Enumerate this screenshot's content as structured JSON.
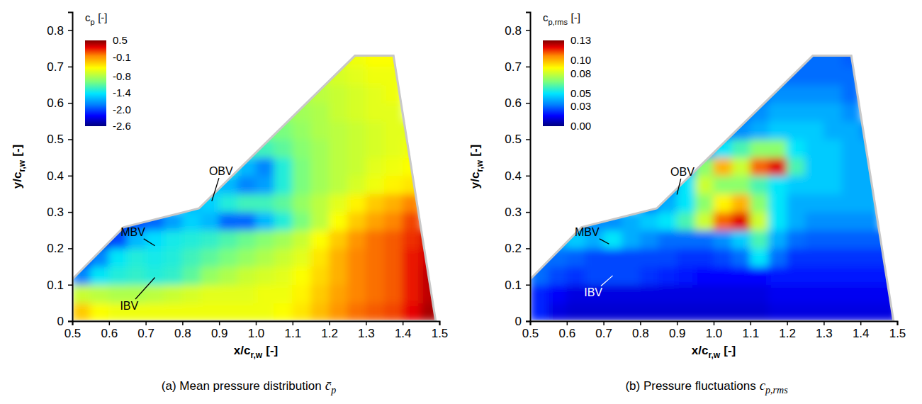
{
  "chart_data": [
    {
      "type": "heatmap",
      "title": {
        "text": "(a) Mean pressure distribution",
        "symbol": "c̄",
        "subscript": "p"
      },
      "xlabel": {
        "base": "x/c",
        "subscript": "r,w",
        "unit": "[-]"
      },
      "ylabel": {
        "base": "y/c",
        "subscript": "r,w",
        "unit": "[-]"
      },
      "xlim": [
        0.5,
        1.5
      ],
      "ylim": [
        0,
        0.85
      ],
      "xticks": [
        0.5,
        0.6,
        0.7,
        0.8,
        0.9,
        {
          "value": 1,
          "label": "1.0"
        },
        1.1,
        1.2,
        1.3,
        1.4,
        1.5
      ],
      "yticks": [
        0,
        0.1,
        0.2,
        0.3,
        0.4,
        0.5,
        0.6,
        0.7,
        0.8
      ],
      "x_edges": [
        0.5,
        0.55,
        0.6,
        0.65,
        0.7,
        0.75,
        0.8,
        0.85,
        0.9,
        0.95,
        1.0,
        1.05,
        1.1,
        1.15,
        1.2,
        1.25,
        1.3,
        1.35,
        1.4,
        1.45,
        1.5
      ],
      "y_edges": [
        0,
        0.05,
        0.1,
        0.15,
        0.2,
        0.25,
        0.3,
        0.35,
        0.4,
        0.45,
        0.5,
        0.55,
        0.6,
        0.65,
        0.7,
        0.75
      ],
      "values": [
        [
          -0.3,
          -0.5,
          -0.55,
          -0.55,
          -0.55,
          -0.55,
          -0.55,
          -0.55,
          -0.55,
          -0.55,
          -0.55,
          -0.5,
          -0.4,
          -0.25,
          -0.1,
          0.0,
          0.05,
          0.1,
          0.25,
          0.4
        ],
        [
          -0.7,
          -0.75,
          -0.8,
          -0.8,
          -0.75,
          -0.7,
          -0.65,
          -0.6,
          -0.6,
          -0.6,
          -0.55,
          -0.55,
          -0.45,
          -0.3,
          -0.15,
          -0.05,
          0.0,
          0.05,
          0.2,
          0.35
        ],
        [
          -1.8,
          -1.4,
          -1.3,
          -1.25,
          -1.3,
          -1.25,
          -1.1,
          -0.9,
          -0.8,
          -0.7,
          -0.65,
          -0.6,
          -0.5,
          -0.35,
          -0.2,
          -0.05,
          0.0,
          0.05,
          0.2,
          0.35
        ],
        [
          -2.2,
          -1.8,
          -1.4,
          -1.3,
          -1.35,
          -1.3,
          -1.2,
          -1.1,
          -1.0,
          -0.9,
          -0.8,
          -0.7,
          -0.6,
          -0.4,
          -0.2,
          -0.05,
          0.0,
          0.05,
          0.2,
          0.3
        ],
        [
          null,
          -2.3,
          -2.0,
          -1.6,
          -1.45,
          -1.35,
          -1.3,
          -1.25,
          -1.15,
          -1.05,
          -0.95,
          -0.85,
          -0.7,
          -0.5,
          -0.3,
          -0.1,
          0.0,
          0.05,
          0.15,
          0.3
        ],
        [
          null,
          null,
          -2.2,
          -2.0,
          -1.9,
          -1.7,
          -1.5,
          -1.6,
          -1.9,
          -1.9,
          -1.6,
          -1.3,
          -1.0,
          -0.75,
          -0.5,
          -0.3,
          -0.15,
          -0.05,
          0.1,
          null
        ],
        [
          null,
          null,
          null,
          null,
          null,
          null,
          -1.6,
          -1.5,
          -1.3,
          -1.2,
          -1.2,
          -1.1,
          -0.9,
          -0.75,
          -0.6,
          -0.45,
          -0.3,
          -0.2,
          -0.05,
          null
        ],
        [
          null,
          null,
          null,
          null,
          null,
          null,
          null,
          -1.5,
          -1.6,
          -1.8,
          -1.7,
          -1.3,
          -1.0,
          -0.85,
          -0.75,
          -0.65,
          -0.55,
          -0.45,
          -0.4,
          null
        ],
        [
          null,
          null,
          null,
          null,
          null,
          null,
          null,
          null,
          -1.3,
          -1.6,
          -1.8,
          -1.3,
          -1.0,
          -0.85,
          -0.75,
          -0.7,
          -0.6,
          -0.55,
          -0.5,
          null
        ],
        [
          null,
          null,
          null,
          null,
          null,
          null,
          null,
          null,
          null,
          -1.2,
          -1.2,
          -1.1,
          -0.95,
          -0.85,
          -0.75,
          -0.7,
          -0.65,
          -0.6,
          -0.55,
          null
        ],
        [
          null,
          null,
          null,
          null,
          null,
          null,
          null,
          null,
          null,
          null,
          -1.0,
          -1.0,
          -0.9,
          -0.8,
          -0.75,
          -0.7,
          -0.65,
          -0.6,
          -0.6,
          null
        ],
        [
          null,
          null,
          null,
          null,
          null,
          null,
          null,
          null,
          null,
          null,
          null,
          -0.9,
          -0.85,
          -0.8,
          -0.7,
          -0.65,
          -0.6,
          -0.6,
          null,
          null
        ],
        [
          null,
          null,
          null,
          null,
          null,
          null,
          null,
          null,
          null,
          null,
          null,
          null,
          -0.8,
          -0.75,
          -0.7,
          -0.65,
          -0.6,
          -0.55,
          null,
          null
        ],
        [
          null,
          null,
          null,
          null,
          null,
          null,
          null,
          null,
          null,
          null,
          null,
          null,
          null,
          -0.7,
          -0.65,
          -0.6,
          -0.55,
          -0.55,
          null,
          null
        ],
        [
          null,
          null,
          null,
          null,
          null,
          null,
          null,
          null,
          null,
          null,
          null,
          null,
          null,
          null,
          -0.6,
          -0.55,
          -0.5,
          -0.5,
          null,
          null
        ]
      ],
      "planform": {
        "x": [
          0.5,
          0.5,
          0.64,
          0.845,
          1.27,
          1.375,
          1.49
        ],
        "y": [
          0,
          0.115,
          0.258,
          0.31,
          0.73,
          0.73,
          0
        ]
      },
      "colorbar": {
        "title": {
          "base": "c",
          "subscript": "p",
          "unit": "[-]"
        },
        "range": [
          -2.6,
          0.5
        ],
        "ticks": [
          0.5,
          -0.1,
          -0.8,
          -1.4,
          {
            "value": -2,
            "label": "-2.0"
          },
          -2.6
        ]
      },
      "annotations": [
        {
          "text": "MBV",
          "x": 0.725,
          "y": 0.207,
          "text_x": 0.665,
          "text_y": 0.245
        },
        {
          "text": "OBV",
          "x": 0.88,
          "y": 0.33,
          "text_x": 0.905,
          "text_y": 0.412
        },
        {
          "text": "IBV",
          "x": 0.725,
          "y": 0.12,
          "text_x": 0.655,
          "text_y": 0.042
        }
      ]
    },
    {
      "type": "heatmap",
      "title": {
        "text": "(b) Pressure fluctuations",
        "symbol": "c",
        "subscript": "p,rms"
      },
      "xlabel": {
        "base": "x/c",
        "subscript": "r,w",
        "unit": "[-]"
      },
      "ylabel": {
        "base": "y/c",
        "subscript": "r,w",
        "unit": "[-]"
      },
      "xlim": [
        0.5,
        1.5
      ],
      "ylim": [
        0,
        0.85
      ],
      "xticks": [
        0.5,
        0.6,
        0.7,
        0.8,
        0.9,
        {
          "value": 1,
          "label": "1.0"
        },
        1.1,
        1.2,
        1.3,
        1.4,
        1.5
      ],
      "yticks": [
        0,
        0.1,
        0.2,
        0.3,
        0.4,
        0.5,
        0.6,
        0.7,
        0.8
      ],
      "x_edges": [
        0.5,
        0.55,
        0.6,
        0.65,
        0.7,
        0.75,
        0.8,
        0.85,
        0.9,
        0.95,
        1.0,
        1.05,
        1.1,
        1.15,
        1.2,
        1.25,
        1.3,
        1.35,
        1.4,
        1.45,
        1.5
      ],
      "y_edges": [
        0,
        0.05,
        0.1,
        0.15,
        0.2,
        0.25,
        0.3,
        0.35,
        0.4,
        0.45,
        0.5,
        0.55,
        0.6,
        0.65,
        0.7,
        0.75
      ],
      "values": [
        [
          0.02,
          0.012,
          0.01,
          0.01,
          0.01,
          0.01,
          0.01,
          0.01,
          0.01,
          0.01,
          0.01,
          0.01,
          0.01,
          0.012,
          0.012,
          0.012,
          0.012,
          0.012,
          0.012,
          0.012
        ],
        [
          0.02,
          0.015,
          0.012,
          0.012,
          0.012,
          0.012,
          0.012,
          0.012,
          0.012,
          0.012,
          0.012,
          0.012,
          0.012,
          0.014,
          0.014,
          0.014,
          0.014,
          0.014,
          0.014,
          0.014
        ],
        [
          0.03,
          0.025,
          0.022,
          0.025,
          0.025,
          0.025,
          0.022,
          0.02,
          0.018,
          0.016,
          0.016,
          0.016,
          0.016,
          0.018,
          0.018,
          0.018,
          0.018,
          0.018,
          0.018,
          0.018
        ],
        [
          0.03,
          0.03,
          0.028,
          0.025,
          0.025,
          0.025,
          0.025,
          0.025,
          0.022,
          0.022,
          0.025,
          0.03,
          0.05,
          0.03,
          0.022,
          0.022,
          0.022,
          0.022,
          0.022,
          0.022
        ],
        [
          null,
          0.04,
          0.045,
          0.04,
          0.05,
          0.04,
          0.035,
          0.03,
          0.03,
          0.03,
          0.035,
          0.045,
          0.06,
          0.04,
          0.03,
          0.028,
          0.028,
          0.028,
          0.028,
          0.028
        ],
        [
          null,
          null,
          0.035,
          0.035,
          0.035,
          0.04,
          0.045,
          0.05,
          0.06,
          0.08,
          0.11,
          0.12,
          0.08,
          0.05,
          0.04,
          0.035,
          0.035,
          0.035,
          0.035,
          null
        ],
        [
          null,
          null,
          null,
          null,
          null,
          null,
          0.03,
          0.04,
          0.05,
          0.07,
          0.09,
          0.1,
          0.07,
          0.05,
          0.04,
          0.04,
          0.04,
          0.04,
          0.04,
          null
        ],
        [
          null,
          null,
          null,
          null,
          null,
          null,
          null,
          0.03,
          0.05,
          0.08,
          0.07,
          0.07,
          0.06,
          0.05,
          0.045,
          0.045,
          0.045,
          0.04,
          0.04,
          null
        ],
        [
          null,
          null,
          null,
          null,
          null,
          null,
          null,
          null,
          0.04,
          0.07,
          0.1,
          0.08,
          0.11,
          0.12,
          0.06,
          0.045,
          0.045,
          0.04,
          0.04,
          null
        ],
        [
          null,
          null,
          null,
          null,
          null,
          null,
          null,
          null,
          null,
          0.03,
          0.05,
          0.06,
          0.07,
          0.07,
          0.05,
          0.045,
          0.045,
          0.04,
          0.04,
          null
        ],
        [
          null,
          null,
          null,
          null,
          null,
          null,
          null,
          null,
          null,
          null,
          0.03,
          0.035,
          0.04,
          0.045,
          0.045,
          0.045,
          0.04,
          0.04,
          0.035,
          null
        ],
        [
          null,
          null,
          null,
          null,
          null,
          null,
          null,
          null,
          null,
          null,
          null,
          0.03,
          0.035,
          0.04,
          0.04,
          0.04,
          0.04,
          0.035,
          null,
          null
        ],
        [
          null,
          null,
          null,
          null,
          null,
          null,
          null,
          null,
          null,
          null,
          null,
          null,
          0.03,
          0.035,
          0.035,
          0.035,
          0.035,
          0.03,
          null,
          null
        ],
        [
          null,
          null,
          null,
          null,
          null,
          null,
          null,
          null,
          null,
          null,
          null,
          null,
          null,
          0.03,
          0.03,
          0.03,
          0.03,
          0.03,
          null,
          null
        ],
        [
          null,
          null,
          null,
          null,
          null,
          null,
          null,
          null,
          null,
          null,
          null,
          null,
          null,
          null,
          0.03,
          0.03,
          0.03,
          0.028,
          null,
          null
        ]
      ],
      "planform": {
        "x": [
          0.5,
          0.5,
          0.64,
          0.845,
          1.27,
          1.375,
          1.49
        ],
        "y": [
          0,
          0.115,
          0.258,
          0.31,
          0.73,
          0.73,
          0
        ]
      },
      "colorbar": {
        "title": {
          "base": "c",
          "subscript": "p,rms",
          "unit": "[-]"
        },
        "range": [
          0,
          0.13
        ],
        "ticks": [
          0.13,
          {
            "value": 0.1,
            "label": "0.10"
          },
          0.08,
          0.05,
          0.03,
          {
            "value": 0,
            "label": "0.00"
          }
        ]
      },
      "annotations": [
        {
          "text": "MBV",
          "x": 0.715,
          "y": 0.212,
          "text_x": 0.655,
          "text_y": 0.245
        },
        {
          "text": "OBV",
          "x": 0.9,
          "y": 0.348,
          "text_x": 0.915,
          "text_y": 0.41
        },
        {
          "text": "IBV",
          "x": 0.725,
          "y": 0.125,
          "text_x": 0.672,
          "text_y": 0.078
        }
      ]
    }
  ]
}
